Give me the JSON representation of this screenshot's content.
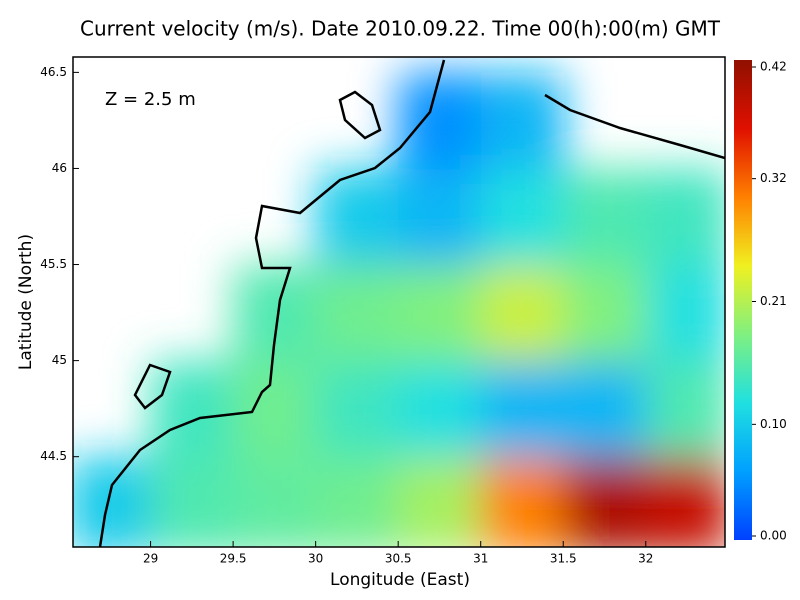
{
  "chart_data": {
    "type": "map",
    "title": "Current velocity (m/s). Date 2010.09.22. Time 00(h):00(m) GMT",
    "annotation": "Z = 2.5 m",
    "x_label": "Longitude (East)",
    "y_label": "Latitude (North)",
    "xlim": [
      28.53,
      32.48
    ],
    "ylim": [
      44.03,
      46.58
    ],
    "xticks": [
      29,
      29.5,
      30,
      30.5,
      31,
      31.5,
      32
    ],
    "yticks": [
      44.5,
      45,
      45.5,
      46,
      46.5
    ],
    "x": [
      28.75,
      29.25,
      29.75,
      30.25,
      30.75,
      31.25,
      31.75,
      32.25
    ],
    "y": [
      44.25,
      44.75,
      45.25,
      45.75,
      46.25
    ],
    "values": [
      [
        0.1,
        0.15,
        0.16,
        0.17,
        0.2,
        0.3,
        0.4,
        0.38
      ],
      [
        null,
        0.14,
        0.17,
        0.14,
        0.12,
        0.08,
        0.08,
        0.15
      ],
      [
        null,
        null,
        0.15,
        0.17,
        0.18,
        0.22,
        0.18,
        0.12
      ],
      [
        null,
        null,
        null,
        0.1,
        0.08,
        0.12,
        0.15,
        0.14
      ],
      [
        null,
        null,
        null,
        null,
        0.05,
        0.08,
        null,
        null
      ]
    ],
    "colorbar_lim": [
      0,
      0.42
    ],
    "colorbar_ticks": [
      {
        "value": 0,
        "label": "0.00"
      },
      {
        "value": 0.1,
        "label": "0.10"
      },
      0.21,
      0.32,
      0.42
    ],
    "colormap": [
      "#0040ff",
      "#00a0ff",
      "#20e0e0",
      "#80f080",
      "#f0f020",
      "#ff8000",
      "#e01000",
      "#901000"
    ]
  }
}
